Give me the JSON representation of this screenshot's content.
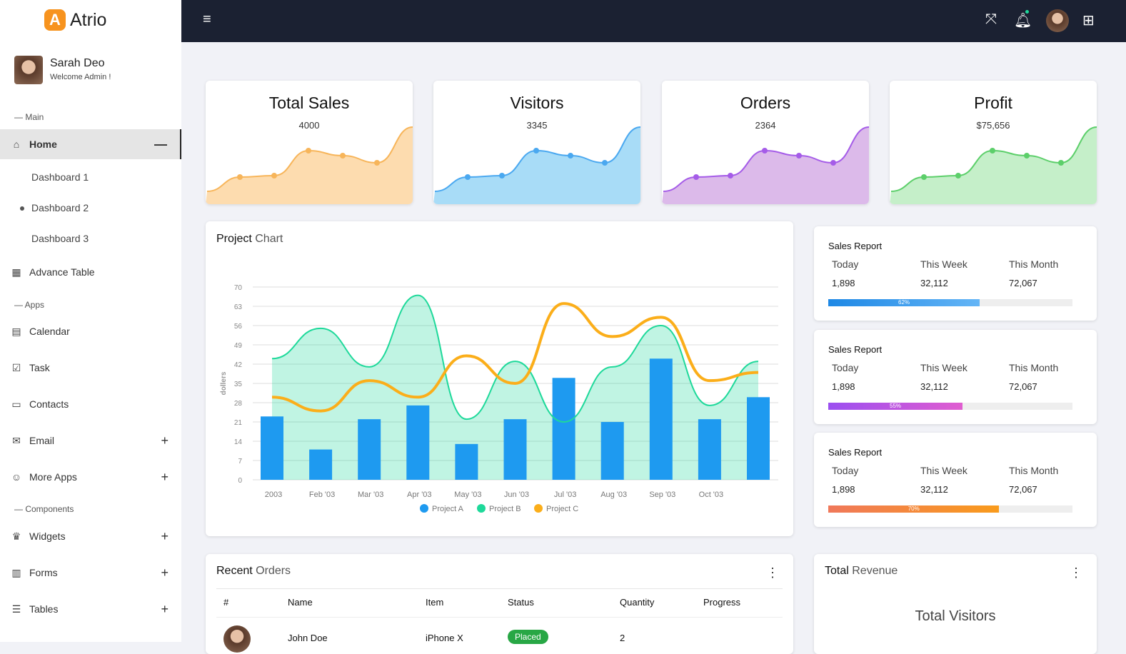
{
  "brand": {
    "letter": "A",
    "name": "Atrio"
  },
  "user": {
    "name": "Sarah Deo",
    "subtitle": "Welcome Admin !"
  },
  "sidebar": {
    "sections": {
      "main": "— Main",
      "apps": "— Apps",
      "components": "— Components"
    },
    "home": {
      "label": "Home",
      "toggle": "—"
    },
    "home_sub": [
      "Dashboard 1",
      "Dashboard 2",
      "Dashboard 3"
    ],
    "items": [
      {
        "label": "Advance Table",
        "icon": "table-icon"
      },
      {
        "label": "Calendar",
        "icon": "calendar-icon"
      },
      {
        "label": "Task",
        "icon": "checkbox-icon"
      },
      {
        "label": "Contacts",
        "icon": "contact-card-icon"
      },
      {
        "label": "Email",
        "icon": "mail-icon",
        "expand": "+"
      },
      {
        "label": "More Apps",
        "icon": "chat-icon",
        "expand": "+"
      },
      {
        "label": "Widgets",
        "icon": "crown-icon",
        "expand": "+"
      },
      {
        "label": "Forms",
        "icon": "form-icon",
        "expand": "+"
      },
      {
        "label": "Tables",
        "icon": "list-icon",
        "expand": "+"
      }
    ]
  },
  "stats": [
    {
      "title": "Total Sales",
      "value": "4000",
      "color": "#f7b55a",
      "fill": "#fddcaf"
    },
    {
      "title": "Visitors",
      "value": "3345",
      "color": "#4aa8f0",
      "fill": "#a8dcf7"
    },
    {
      "title": "Orders",
      "value": "2364",
      "color": "#a55ce8",
      "fill": "#dcbaea"
    },
    {
      "title": "Profit",
      "value": "$75,656",
      "color": "#5ccf6a",
      "fill": "#c5efc9"
    }
  ],
  "project_chart": {
    "title_bold": "Project",
    "title_rest": " Chart"
  },
  "chart_data": {
    "type": "bar+area+line",
    "ylabel": "dollers",
    "ylim": [
      0,
      70
    ],
    "yticks": [
      0,
      7,
      14,
      21,
      28,
      35,
      42,
      49,
      56,
      63,
      70
    ],
    "categories": [
      "2003",
      "Feb '03",
      "Mar '03",
      "Apr '03",
      "May '03",
      "Jun '03",
      "Jul '03",
      "Aug '03",
      "Sep '03",
      "Oct '03",
      ""
    ],
    "series": [
      {
        "name": "Project A",
        "type": "bar",
        "color": "#1e9af0",
        "values": [
          23,
          11,
          22,
          27,
          13,
          22,
          37,
          21,
          44,
          22,
          30
        ]
      },
      {
        "name": "Project B",
        "type": "area",
        "color": "#1ed99a",
        "values": [
          44,
          55,
          41,
          67,
          22,
          43,
          21,
          41,
          56,
          27,
          43
        ]
      },
      {
        "name": "Project C",
        "type": "line",
        "color": "#fbae1a",
        "values": [
          30,
          25,
          36,
          30,
          45,
          35,
          64,
          52,
          59,
          36,
          39
        ]
      }
    ],
    "legend": "bottom",
    "grid": true
  },
  "sales_reports": [
    {
      "title": "Sales Report",
      "cols": [
        "Today",
        "This Week",
        "This Month"
      ],
      "vals": [
        "1,898",
        "32,112",
        "72,067"
      ],
      "pct": 62,
      "label": "62%",
      "grad": "linear-gradient(90deg,#1e88e5,#64b5f6)"
    },
    {
      "title": "Sales Report",
      "cols": [
        "Today",
        "This Week",
        "This Month"
      ],
      "vals": [
        "1,898",
        "32,112",
        "72,067"
      ],
      "pct": 55,
      "label": "55%",
      "grad": "linear-gradient(90deg,#9b4ff0,#e05dd0)"
    },
    {
      "title": "Sales Report",
      "cols": [
        "Today",
        "This Week",
        "This Month"
      ],
      "vals": [
        "1,898",
        "32,112",
        "72,067"
      ],
      "pct": 70,
      "label": "70%",
      "grad": "linear-gradient(90deg,#f0785a,#f99b1c)"
    }
  ],
  "orders": {
    "title_bold": "Recent",
    "title_rest": " Orders",
    "headers": [
      "#",
      "Name",
      "Item",
      "Status",
      "Quantity",
      "Progress"
    ],
    "rows": [
      {
        "name": "John Doe",
        "item": "iPhone X",
        "status": "Placed",
        "qty": "2"
      }
    ]
  },
  "revenue": {
    "title_bold": "Total",
    "title_rest": " Revenue",
    "sub": "Total Visitors"
  }
}
